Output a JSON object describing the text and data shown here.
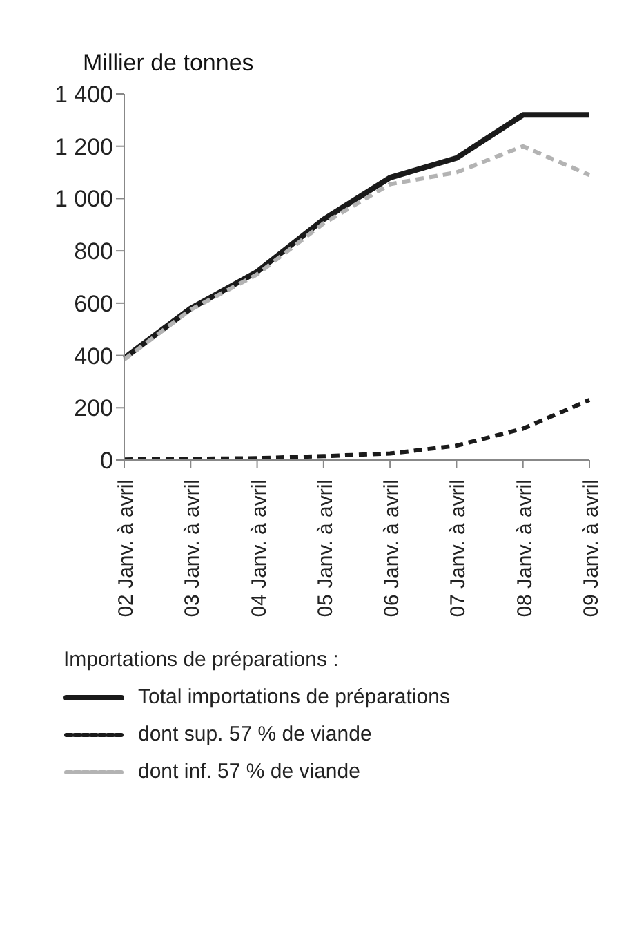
{
  "chart_data": {
    "type": "line",
    "ylabel": "Millier de tonnes",
    "legend_title": "Importations de préparations :",
    "categories": [
      "02 Janv. à avril",
      "03 Janv. à avril",
      "04 Janv. à avril",
      "05 Janv. à avril",
      "06 Janv. à avril",
      "07 Janv. à avril",
      "08 Janv. à avril",
      "09 Janv. à avril"
    ],
    "series": [
      {
        "name": "Total importations de préparations",
        "color": "#1a1a1a",
        "line_style": "solid",
        "values": [
          390,
          580,
          720,
          920,
          1080,
          1155,
          1320,
          1320
        ]
      },
      {
        "name": "dont sup. 57 % de viande",
        "color": "#1a1a1a",
        "line_style": "dashed",
        "values": [
          2,
          5,
          7,
          15,
          25,
          55,
          120,
          230
        ]
      },
      {
        "name": "dont inf. 57 % de viande",
        "color": "#b3b3b3",
        "line_style": "dashed",
        "values": [
          385,
          575,
          710,
          905,
          1055,
          1100,
          1200,
          1090
        ]
      }
    ],
    "ylim": [
      0,
      1400
    ],
    "yticks": [
      0,
      200,
      400,
      600,
      800,
      1000,
      1200,
      1400
    ],
    "grid": false,
    "legend": "bottom",
    "marker": "none"
  }
}
